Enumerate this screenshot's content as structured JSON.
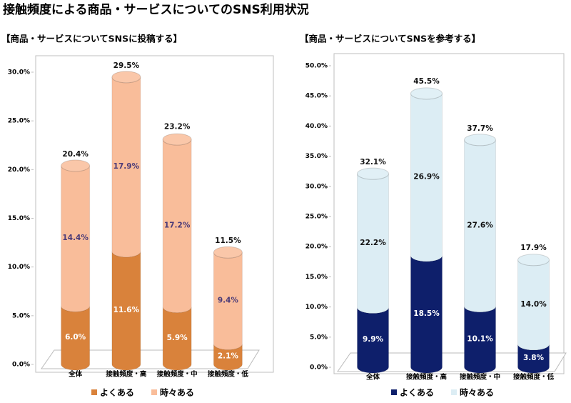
{
  "title": "接触頻度による商品・サービスについてのSNS利用状況",
  "chart_data": [
    {
      "type": "stacked-cylinder",
      "title": "【商品・サービスについてSNSに投稿する】",
      "categories": [
        "全体",
        "接触頻度・高",
        "接触頻度・中",
        "接触頻度・低"
      ],
      "series": [
        {
          "name": "よくある",
          "color": "#d9823b",
          "values": [
            6.0,
            11.6,
            5.9,
            2.1
          ],
          "value_labels": [
            "6.0%",
            "11.6%",
            "5.9%",
            "2.1%"
          ]
        },
        {
          "name": "時々ある",
          "color": "#f9bd9a",
          "values": [
            14.4,
            17.9,
            17.2,
            9.4
          ],
          "value_labels": [
            "14.4%",
            "17.9%",
            "17.2%",
            "9.4%"
          ]
        }
      ],
      "totals": [
        20.4,
        29.5,
        23.2,
        11.5
      ],
      "totals_labels": [
        "20.4%",
        "29.5%",
        "23.2%",
        "11.5%"
      ],
      "ylim": [
        0,
        30
      ],
      "yticks": [
        {
          "value": 0,
          "label": "0.0%"
        },
        {
          "value": 5,
          "label": "5.0%"
        },
        {
          "value": 10,
          "label": "10.0%"
        },
        {
          "value": 15,
          "label": "15.0%"
        },
        {
          "value": 20,
          "label": "20.0%"
        },
        {
          "value": 25,
          "label": "25.0%"
        },
        {
          "value": 30,
          "label": "30.0%"
        }
      ],
      "grid": false,
      "legend": "bottom"
    },
    {
      "type": "stacked-cylinder",
      "title": "【商品・サービスについてSNSを参考する】",
      "categories": [
        "全体",
        "接触頻度・高",
        "接触頻度・中",
        "接触頻度・低"
      ],
      "series": [
        {
          "name": "よくある",
          "color": "#0e1f6b",
          "values": [
            9.9,
            18.5,
            10.1,
            3.8
          ],
          "value_labels": [
            "9.9%",
            "18.5%",
            "10.1%",
            "3.8%"
          ]
        },
        {
          "name": "時々ある",
          "color": "#dcedf4",
          "values": [
            22.2,
            26.9,
            27.6,
            14.0
          ],
          "value_labels": [
            "22.2%",
            "26.9%",
            "27.6%",
            "14.0%"
          ]
        }
      ],
      "totals": [
        32.1,
        45.5,
        37.7,
        17.9
      ],
      "totals_labels": [
        "32.1%",
        "45.5%",
        "37.7%",
        "17.9%"
      ],
      "ylim": [
        0,
        50
      ],
      "yticks": [
        {
          "value": 0,
          "label": "0.0%"
        },
        {
          "value": 5,
          "label": "5.0%"
        },
        {
          "value": 10,
          "label": "10.0%"
        },
        {
          "value": 15,
          "label": "15.0%"
        },
        {
          "value": 20,
          "label": "20.0%"
        },
        {
          "value": 25,
          "label": "25.0%"
        },
        {
          "value": 30,
          "label": "30.0%"
        },
        {
          "value": 35,
          "label": "35.0%"
        },
        {
          "value": 40,
          "label": "40.0%"
        },
        {
          "value": 45,
          "label": "45.0%"
        },
        {
          "value": 50,
          "label": "50.0%"
        }
      ],
      "grid": false,
      "legend": "bottom"
    }
  ]
}
